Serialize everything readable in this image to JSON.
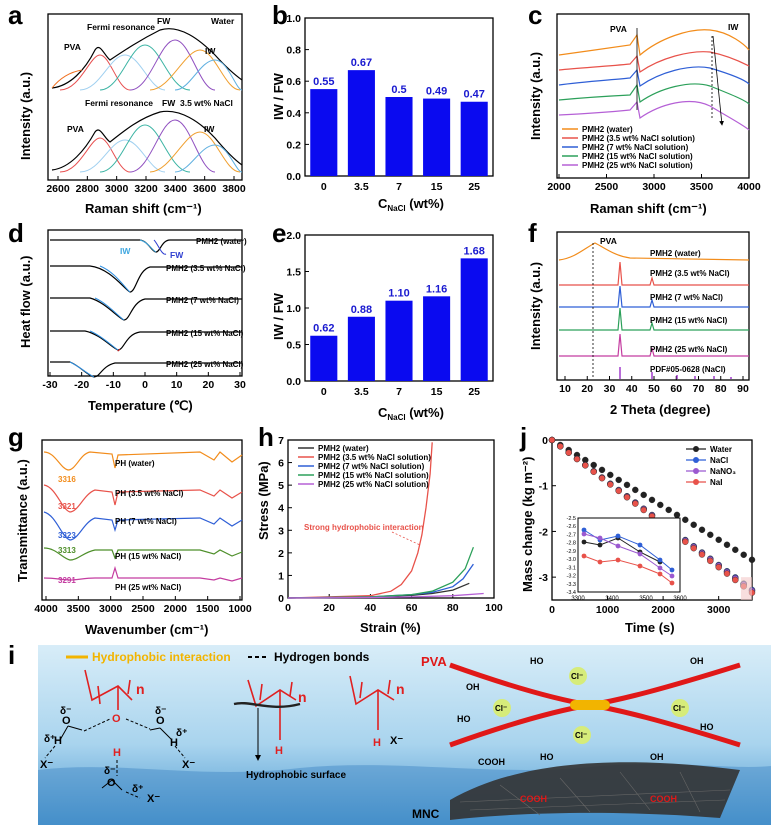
{
  "panels": {
    "a": {
      "label": "a",
      "ylabel": "Intensity (a.u.)",
      "xlabel": "Raman shift (cm⁻¹)",
      "xticks": [
        "2600",
        "2800",
        "3000",
        "3200",
        "3400",
        "3600",
        "3800"
      ],
      "top_tag": "Water",
      "bottom_tag": "3.5 wt% NaCl",
      "ann": {
        "pva": "PVA",
        "fermi": "Fermi resonance",
        "fw": "FW",
        "iw": "IW"
      }
    },
    "b": {
      "label": "b",
      "ylabel": "IW / FW",
      "xlabel": "C",
      "xlabel_sub": "NaCl",
      "xlabel_unit": " (wt%)",
      "ylim": [
        0,
        1.0
      ],
      "yticks": [
        "0.0",
        "0.2",
        "0.4",
        "0.6",
        "0.8",
        "1.0"
      ]
    },
    "c": {
      "label": "c",
      "ylabel": "Intensity (a.u.)",
      "xlabel": "Raman shift (cm⁻¹)",
      "xticks": [
        "2000",
        "2500",
        "3000",
        "3500",
        "4000"
      ],
      "ann": {
        "pva": "PVA",
        "iw": "IW"
      },
      "legend": [
        "PMH2 (water)",
        "PMH2 (3.5 wt% NaCl solution)",
        "PMH2 (7 wt% NaCl solution)",
        "PMH2 (15 wt% NaCl solution)",
        "PMH2 (25 wt% NaCl solution)"
      ],
      "colors": [
        "#f28c1b",
        "#e8524a",
        "#2f5fd6",
        "#2ca05a",
        "#b560d6"
      ]
    },
    "d": {
      "label": "d",
      "ylabel": "Heat flow (a.u.)",
      "xlabel": "Temperature (℃)",
      "xticks": [
        "-30",
        "-20",
        "-10",
        "0",
        "10",
        "20",
        "30"
      ],
      "curves": [
        "PMH2 (water)",
        "PMH2 (3.5 wt% NaCl)",
        "PMH2 (7 wt% NaCl)",
        "PMH2 (15 wt% NaCl)",
        "PMH2 (25 wt% NaCl)"
      ],
      "ann": {
        "iw": "IW",
        "fw": "FW"
      }
    },
    "e": {
      "label": "e",
      "ylabel": "IW / FW",
      "xlabel": "C",
      "xlabel_sub": "NaCl",
      "xlabel_unit": " (wt%)",
      "ylim": [
        0,
        2.0
      ],
      "yticks": [
        "0.0",
        "0.5",
        "1.0",
        "1.5",
        "2.0"
      ]
    },
    "f": {
      "label": "f",
      "ylabel": "Intensity (a.u.)",
      "xlabel": "2 Theta (degree)",
      "xticks": [
        "10",
        "20",
        "30",
        "40",
        "50",
        "60",
        "70",
        "80",
        "90"
      ],
      "ann": {
        "pva": "PVA"
      },
      "curves": [
        "PMH2 (water)",
        "PMH2 (3.5 wt% NaCl)",
        "PMH2 (7 wt% NaCl)",
        "PMH2 (15 wt% NaCl)",
        "PMH2 (25 wt% NaCl)",
        "PDF#05-0628 (NaCl)"
      ],
      "colors": [
        "#f28c1b",
        "#e8524a",
        "#2f5fd6",
        "#2ca05a",
        "#c43ca0",
        "#9b2fc9"
      ]
    },
    "g": {
      "label": "g",
      "ylabel": "Transmittance (a.u.)",
      "xlabel": "Wavenumber (cm⁻¹)",
      "xticks": [
        "4000",
        "3500",
        "3000",
        "2500",
        "2000",
        "1500",
        "1000"
      ],
      "curves": [
        "PH (water)",
        "PH (3.5 wt% NaCl)",
        "PH (7 wt% NaCl)",
        "PH (15 wt% NaCl)",
        "PH (25 wt% NaCl)"
      ],
      "peaks": [
        "3316",
        "3321",
        "3323",
        "3313",
        "3291"
      ],
      "colors": [
        "#f28c1b",
        "#e8524a",
        "#2f5fd6",
        "#4e8f2a",
        "#c43ca0"
      ]
    },
    "h": {
      "label": "h",
      "ylabel": "Stress (MPa)",
      "xlabel": "Strain (%)",
      "xticks": [
        "0",
        "20",
        "40",
        "60",
        "80",
        "100"
      ],
      "yticks": [
        "0",
        "1",
        "2",
        "3",
        "4",
        "5",
        "6",
        "7"
      ],
      "legend": [
        "PMH2 (water)",
        "PMH2 (3.5 wt% NaCl solution)",
        "PMH2 (7 wt% NaCl solution)",
        "PMH2 (15 wt% NaCl solution)",
        "PMH2 (25 wt% NaCl solution)"
      ],
      "colors": [
        "#333333",
        "#e8524a",
        "#2f5fd6",
        "#2ca05a",
        "#b560d6"
      ],
      "ann": "Strong hydrophobic interaction"
    },
    "j": {
      "label": "j",
      "ylabel": "Mass change (kg m⁻²)",
      "xlabel": "Time (s)",
      "xticks": [
        "0",
        "1000",
        "2000",
        "3000"
      ],
      "yticks": [
        "0",
        "-1",
        "-2",
        "-3"
      ],
      "legend": [
        "Water",
        "NaCl",
        "NaNO₃",
        "NaI"
      ],
      "colors": [
        "#222222",
        "#2f5fd6",
        "#9b59d0",
        "#e8524a"
      ],
      "inset_xticks": [
        "3300",
        "3400",
        "3500",
        "3600"
      ],
      "inset_yticks": [
        "-2.5",
        "-2.6",
        "-2.7",
        "-2.8",
        "-2.9",
        "-3.0",
        "-3.1",
        "-3.2",
        "-3.3",
        "-3.4"
      ]
    },
    "i": {
      "label": "i",
      "legend_hydrophobic": "Hydrophobic interaction",
      "legend_hbond": "Hydrogen bonds",
      "n": "n",
      "x_minus": "X⁻",
      "hydrophobic_surface": "Hydrophobic surface",
      "pva": "PVA",
      "mnc": "MNC",
      "cl": "Cl⁻",
      "oh": "OH",
      "ho": "HO",
      "cooh": "COOH",
      "delta_minus": "δ⁻",
      "delta_plus": "δ⁺",
      "o": "O",
      "h": "H"
    }
  },
  "chart_data": [
    {
      "panel": "b",
      "type": "bar",
      "categories": [
        "0",
        "3.5",
        "7",
        "15",
        "25"
      ],
      "values": [
        0.55,
        0.67,
        0.5,
        0.49,
        0.47
      ],
      "labels": [
        "0.55",
        "0.67",
        "0.5",
        "0.49",
        "0.47"
      ],
      "xlabel": "C_NaCl (wt%)",
      "ylabel": "IW / FW",
      "ylim": [
        0,
        1.0
      ],
      "color": "#0a0af0"
    },
    {
      "panel": "e",
      "type": "bar",
      "categories": [
        "0",
        "3.5",
        "7",
        "15",
        "25"
      ],
      "values": [
        0.62,
        0.88,
        1.1,
        1.16,
        1.68
      ],
      "labels": [
        "0.62",
        "0.88",
        "1.10",
        "1.16",
        "1.68"
      ],
      "xlabel": "C_NaCl (wt%)",
      "ylabel": "IW / FW",
      "ylim": [
        0,
        2.0
      ],
      "color": "#0a0af0"
    },
    {
      "panel": "h",
      "type": "line",
      "xlabel": "Strain (%)",
      "ylabel": "Stress (MPa)",
      "xlim": [
        0,
        100
      ],
      "ylim": [
        0,
        7
      ],
      "series": [
        {
          "name": "PMH2 (water)",
          "x": [
            0,
            40,
            60,
            70,
            80,
            88
          ],
          "y": [
            0,
            0.05,
            0.12,
            0.2,
            0.35,
            0.65
          ]
        },
        {
          "name": "PMH2 (3.5 wt% NaCl solution)",
          "x": [
            0,
            40,
            50,
            55,
            60,
            63,
            65,
            67,
            69,
            70
          ],
          "y": [
            0,
            0.1,
            0.3,
            0.6,
            1.2,
            2.0,
            2.8,
            4.0,
            5.5,
            6.9
          ]
        },
        {
          "name": "PMH2 (7 wt% NaCl solution)",
          "x": [
            0,
            40,
            60,
            70,
            80,
            85,
            90
          ],
          "y": [
            0,
            0.05,
            0.15,
            0.25,
            0.5,
            0.85,
            1.5
          ]
        },
        {
          "name": "PMH2 (15 wt% NaCl solution)",
          "x": [
            0,
            40,
            60,
            70,
            80,
            86,
            90
          ],
          "y": [
            0,
            0.05,
            0.15,
            0.3,
            0.7,
            1.3,
            2.25
          ]
        },
        {
          "name": "PMH2 (25 wt% NaCl solution)",
          "x": [
            0,
            40,
            60,
            80,
            95
          ],
          "y": [
            0,
            0.02,
            0.05,
            0.1,
            0.2
          ]
        }
      ]
    },
    {
      "panel": "j",
      "type": "scatter",
      "xlabel": "Time (s)",
      "ylabel": "Mass change (kg m-2)",
      "xlim": [
        0,
        3600
      ],
      "ylim": [
        -3.5,
        0
      ],
      "series": [
        {
          "name": "Water",
          "x": [
            0,
            3600
          ],
          "y": [
            0,
            -2.62
          ]
        },
        {
          "name": "NaCl",
          "x": [
            0,
            3600
          ],
          "y": [
            0,
            -3.28
          ]
        },
        {
          "name": "NaNO3",
          "x": [
            0,
            3600
          ],
          "y": [
            0,
            -3.3
          ]
        },
        {
          "name": "NaI",
          "x": [
            0,
            3600
          ],
          "y": [
            0,
            -3.34
          ]
        }
      ]
    }
  ]
}
